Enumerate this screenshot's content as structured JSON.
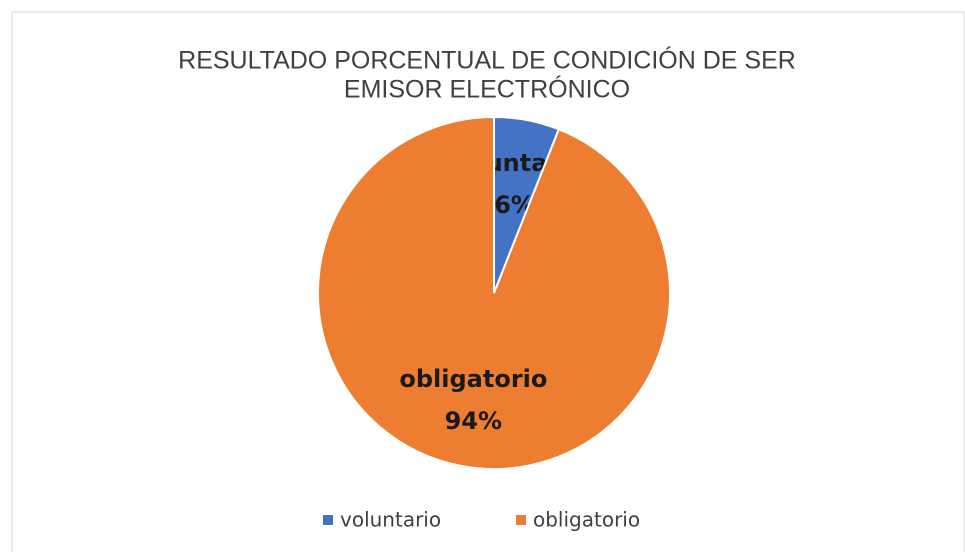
{
  "chart_data": {
    "type": "pie",
    "title": [
      "RESULTADO PORCENTUAL DE CONDICIÓN DE SER",
      "EMISOR ELECTRÓNICO"
    ],
    "categories": [
      "voluntario",
      "obligatorio"
    ],
    "values": [
      6,
      94
    ],
    "value_labels": [
      "6%",
      "94%"
    ],
    "colors": [
      "#4472c4",
      "#ed7d31"
    ],
    "legend": "bottom"
  }
}
